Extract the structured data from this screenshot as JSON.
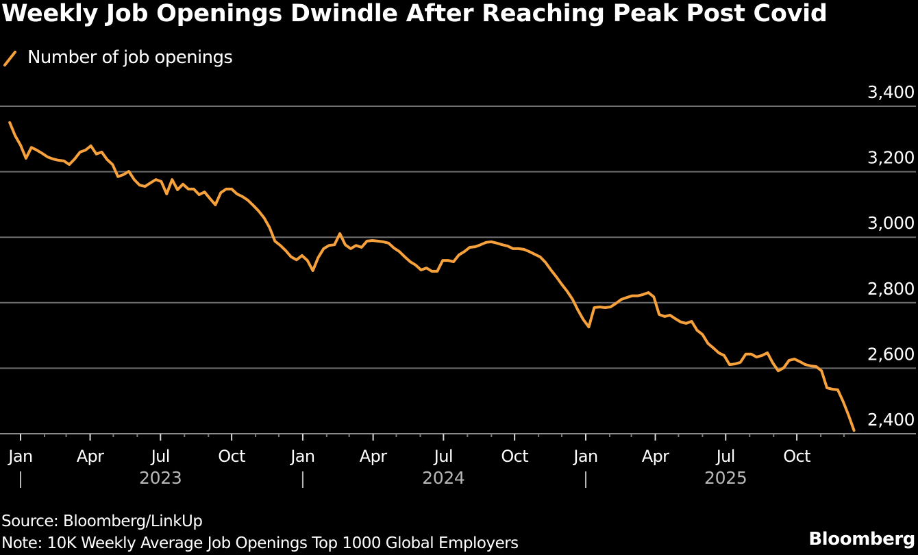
{
  "chart_data": {
    "type": "line",
    "title": "Weekly Job Openings Dwindle After Reaching Peak Post Covid",
    "legend": {
      "position": "top-left",
      "entries": [
        {
          "label": "Number of job openings",
          "color": "#f7a13c"
        }
      ]
    },
    "xlabel": "",
    "ylabel": "",
    "x_frequency": "weekly",
    "x_start": "2022-12-18",
    "ylim": [
      2400,
      3400
    ],
    "grid": true,
    "y_ticks": [
      {
        "value": 3400,
        "label": "3,400"
      },
      {
        "value": 3200,
        "label": "3,200"
      },
      {
        "value": 3000,
        "label": "3,000"
      },
      {
        "value": 2800,
        "label": "2,800"
      },
      {
        "value": 2600,
        "label": "2,600"
      },
      {
        "value": 2400,
        "label": "2,400"
      }
    ],
    "x_month_ticks": [
      {
        "month": "2023-01",
        "label": "Jan"
      },
      {
        "month": "2023-04",
        "label": "Apr"
      },
      {
        "month": "2023-07",
        "label": "Jul"
      },
      {
        "month": "2023-10",
        "label": "Oct"
      },
      {
        "month": "2024-01",
        "label": "Jan"
      },
      {
        "month": "2024-04",
        "label": "Apr"
      },
      {
        "month": "2024-07",
        "label": "Jul"
      },
      {
        "month": "2024-10",
        "label": "Oct"
      },
      {
        "month": "2025-01",
        "label": "Jan"
      },
      {
        "month": "2025-04",
        "label": "Apr"
      },
      {
        "month": "2025-07",
        "label": "Jul"
      },
      {
        "month": "2025-10",
        "label": "Oct"
      }
    ],
    "x_year_labels": [
      {
        "year": "2023",
        "label": "2023"
      },
      {
        "year": "2024",
        "label": "2024"
      },
      {
        "year": "2025",
        "label": "2025"
      }
    ],
    "series": [
      {
        "name": "Number of job openings",
        "color": "#f7a13c",
        "values": [
          3350,
          3310,
          3281,
          3241,
          3274,
          3266,
          3256,
          3245,
          3239,
          3235,
          3233,
          3222,
          3239,
          3260,
          3266,
          3279,
          3254,
          3260,
          3237,
          3222,
          3185,
          3191,
          3201,
          3176,
          3159,
          3155,
          3166,
          3176,
          3170,
          3132,
          3176,
          3145,
          3162,
          3147,
          3147,
          3130,
          3138,
          3118,
          3099,
          3136,
          3147,
          3147,
          3132,
          3124,
          3113,
          3097,
          3080,
          3059,
          3030,
          2988,
          2975,
          2959,
          2940,
          2931,
          2944,
          2929,
          2898,
          2938,
          2965,
          2975,
          2977,
          3011,
          2977,
          2965,
          2975,
          2969,
          2988,
          2990,
          2988,
          2986,
          2982,
          2967,
          2956,
          2940,
          2925,
          2915,
          2900,
          2906,
          2896,
          2896,
          2929,
          2929,
          2925,
          2946,
          2956,
          2969,
          2971,
          2977,
          2984,
          2986,
          2982,
          2977,
          2973,
          2965,
          2965,
          2963,
          2956,
          2948,
          2940,
          2923,
          2900,
          2879,
          2856,
          2835,
          2810,
          2777,
          2748,
          2726,
          2785,
          2787,
          2785,
          2787,
          2798,
          2810,
          2816,
          2821,
          2821,
          2825,
          2831,
          2818,
          2764,
          2758,
          2762,
          2751,
          2741,
          2737,
          2743,
          2716,
          2703,
          2676,
          2662,
          2647,
          2639,
          2611,
          2613,
          2618,
          2643,
          2643,
          2634,
          2639,
          2647,
          2616,
          2592,
          2601,
          2624,
          2628,
          2620,
          2611,
          2607,
          2605,
          2592,
          2540,
          2536,
          2534,
          2498,
          2456,
          2410
        ]
      }
    ]
  },
  "footer": {
    "source": "Source: Bloomberg/LinkUp",
    "note": "Note: 10K Weekly Average Job Openings Top 1000 Global Employers",
    "brand": "Bloomberg"
  }
}
